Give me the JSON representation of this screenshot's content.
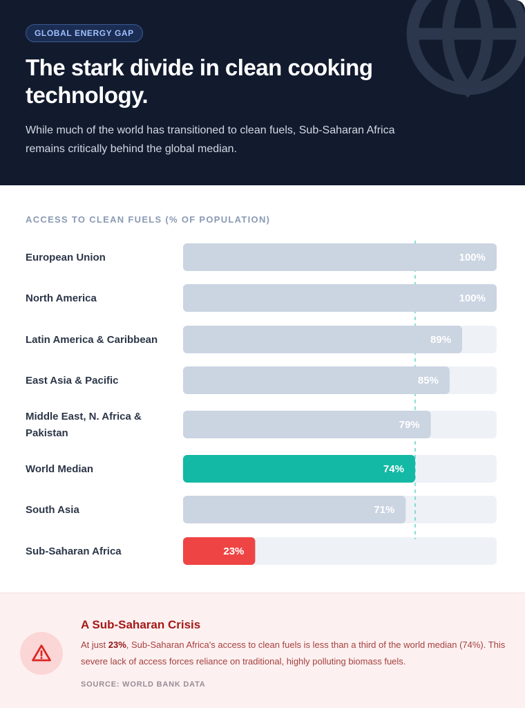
{
  "header": {
    "badge": "GLOBAL ENERGY GAP",
    "title": "The stark divide in clean cooking technology.",
    "subtitle": "While much of the world has transitioned to clean fuels, Sub-Saharan Africa remains critically behind the global median."
  },
  "chart_data": {
    "type": "bar",
    "orientation": "horizontal",
    "title": "ACCESS TO CLEAN FUELS (% OF POPULATION)",
    "xlabel": "",
    "ylabel": "",
    "xlim": [
      0,
      100
    ],
    "reference_line": 74,
    "grid": false,
    "legend": "none",
    "categories": [
      [
        "European Union"
      ],
      [
        "North America"
      ],
      [
        "Latin America & Caribbean"
      ],
      [
        "East Asia & Pacific"
      ],
      [
        "Middle East, N. Africa &",
        "Pakistan"
      ],
      [
        "World Median"
      ],
      [
        "South Asia"
      ],
      [
        "Sub-Saharan Africa"
      ]
    ],
    "values": [
      100,
      100,
      89,
      85,
      79,
      74,
      71,
      23
    ],
    "value_labels": [
      "100%",
      "100%",
      "89%",
      "85%",
      "79%",
      "74%",
      "71%",
      "23%"
    ],
    "colors": {
      "default": "#cbd4e1",
      "highlight": "#13b9a4",
      "critical": "#ef4444",
      "track": "#eef2f7",
      "reference": "#5fd3c4"
    },
    "bar_styles": [
      "default",
      "default",
      "default",
      "default",
      "default",
      "highlight",
      "default",
      "critical"
    ]
  },
  "crisis": {
    "icon": "warning-triangle-icon",
    "title": "A Sub-Saharan Crisis",
    "text_prefix": "At just ",
    "text_bold": "23%",
    "text_suffix": ", Sub-Saharan Africa's access to clean fuels is less than a third of the world median (74%). This severe lack of access forces reliance on traditional, highly polluting biomass fuels.",
    "source": "SOURCE: WORLD BANK DATA"
  }
}
